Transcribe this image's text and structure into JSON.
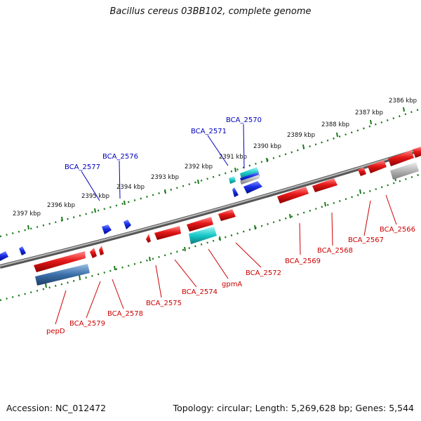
{
  "title": "Bacillus cereus 03BB102, complete genome",
  "footer": {
    "accession": "Accession: NC_012472",
    "topology": "Topology: circular; Length: 5,269,628 bp; Genes: 5,544"
  },
  "colors": {
    "backbone": "#7f7f7f",
    "tick_ruler": "#1a7a1a",
    "gene_forward_label": "#0000bb",
    "gene_reverse_label": "#cc0000",
    "gene_red": "#e61818",
    "gene_blue": "#1a2ee6",
    "gene_cyan": "#18c8c8",
    "gene_steel": "#3a6fa8",
    "gene_grey": "#b4b4b4"
  },
  "ruler_labels": [
    "2386 kbp",
    "2387 kbp",
    "2388 kbp",
    "2389 kbp",
    "2390 kbp",
    "2391 kbp",
    "2392 kbp",
    "2393 kbp",
    "2394 kbp",
    "2395 kbp",
    "2396 kbp",
    "2397 kbp"
  ],
  "forward_genes": [
    "BCA_2570",
    "BCA_2571",
    "BCA_2576",
    "BCA_2577"
  ],
  "reverse_genes": [
    "BCA_2566",
    "BCA_2567",
    "BCA_2568",
    "BCA_2569",
    "BCA_2572",
    "gpmA",
    "BCA_2574",
    "BCA_2575",
    "BCA_2578",
    "BCA_2579",
    "pepD"
  ]
}
